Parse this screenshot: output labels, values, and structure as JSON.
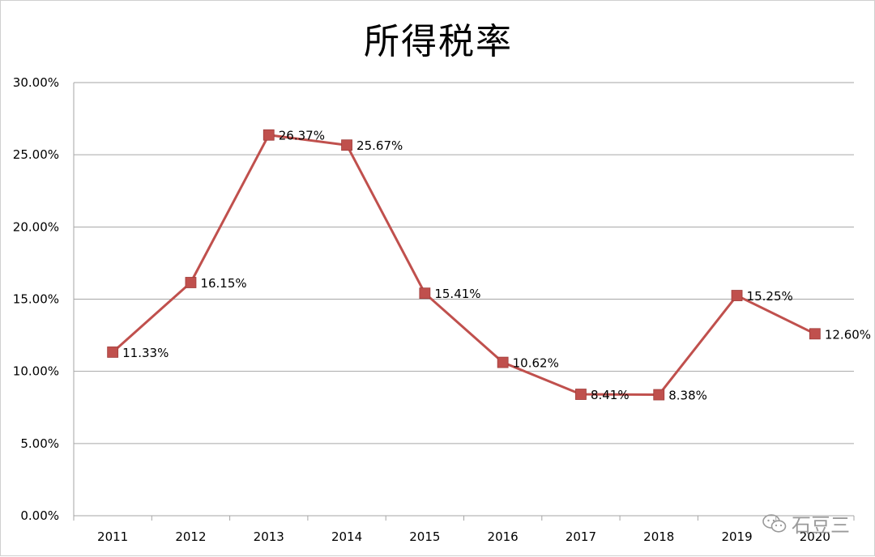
{
  "chart_data": {
    "type": "line",
    "title": "所得税率",
    "categories": [
      "2011",
      "2012",
      "2013",
      "2014",
      "2015",
      "2016",
      "2017",
      "2018",
      "2019",
      "2020"
    ],
    "values": [
      11.33,
      16.15,
      26.37,
      25.67,
      15.41,
      10.62,
      8.41,
      8.38,
      15.25,
      12.6
    ],
    "data_labels": [
      "11.33%",
      "16.15%",
      "26.37%",
      "25.67%",
      "15.41%",
      "10.62%",
      "8.41%",
      "8.38%",
      "15.25%",
      "12.60%"
    ],
    "y_ticks": [
      0,
      5,
      10,
      15,
      20,
      25,
      30
    ],
    "y_tick_labels": [
      "0.00%",
      "5.00%",
      "10.00%",
      "15.00%",
      "20.00%",
      "25.00%",
      "30.00%"
    ],
    "ylim": [
      0,
      30
    ],
    "grid": true,
    "legend": "none",
    "xlabel": "",
    "ylabel": "",
    "series_color": "#c0504d",
    "marker": "square"
  },
  "watermark": {
    "icon": "wechat-icon",
    "text": "石豆三"
  },
  "colors": {
    "gridline": "#a6a6a6",
    "axis_text": "#000000"
  }
}
